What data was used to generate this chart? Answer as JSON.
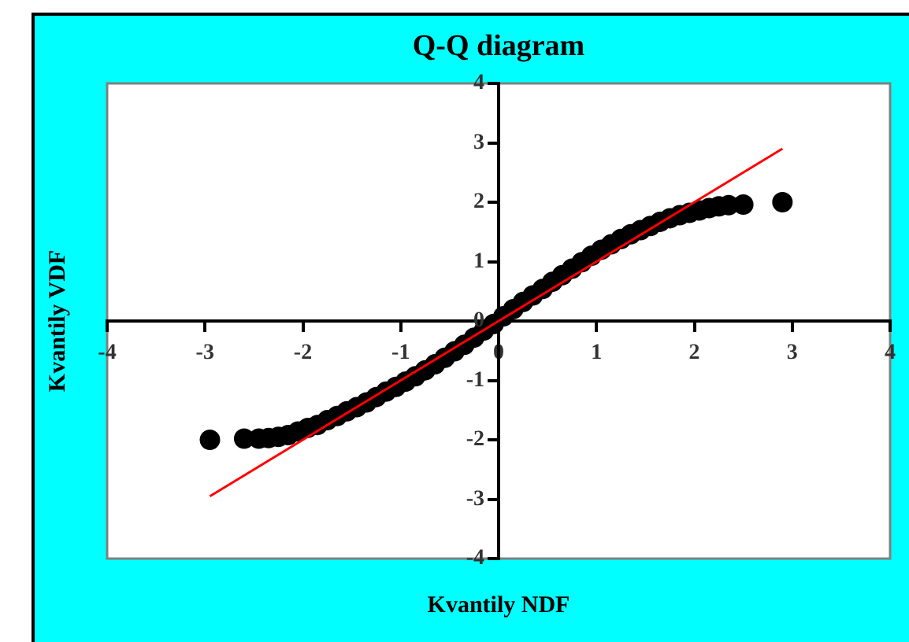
{
  "chart_data": {
    "type": "scatter",
    "title": "Q-Q diagram",
    "xlabel": "Kvantily NDF",
    "ylabel": "Kvantily VDF",
    "xlim": [
      -4,
      4
    ],
    "ylim": [
      -4,
      4
    ],
    "xticks": [
      -4,
      -3,
      -2,
      -1,
      0,
      1,
      2,
      3,
      4
    ],
    "yticks": [
      -4,
      -3,
      -2,
      -1,
      0,
      1,
      2,
      3,
      4
    ],
    "grid": false,
    "legend": false,
    "series": [
      {
        "marker": "circle",
        "color": "#000000",
        "x": [
          -2.95,
          -2.6,
          -2.45,
          -2.35,
          -2.25,
          -2.15,
          -2.05,
          -1.95,
          -1.85,
          -1.75,
          -1.65,
          -1.55,
          -1.45,
          -1.35,
          -1.25,
          -1.15,
          -1.05,
          -0.95,
          -0.85,
          -0.75,
          -0.65,
          -0.55,
          -0.45,
          -0.35,
          -0.25,
          -0.15,
          -0.05,
          0.05,
          0.15,
          0.25,
          0.35,
          0.45,
          0.55,
          0.65,
          0.75,
          0.85,
          0.95,
          1.05,
          1.15,
          1.25,
          1.35,
          1.45,
          1.55,
          1.65,
          1.75,
          1.85,
          1.95,
          2.05,
          2.15,
          2.25,
          2.35,
          2.5,
          2.9
        ],
        "values": [
          -2.0,
          -1.98,
          -1.98,
          -1.97,
          -1.95,
          -1.92,
          -1.86,
          -1.8,
          -1.75,
          -1.67,
          -1.6,
          -1.52,
          -1.45,
          -1.37,
          -1.28,
          -1.19,
          -1.11,
          -1.02,
          -0.93,
          -0.83,
          -0.73,
          -0.62,
          -0.51,
          -0.4,
          -0.28,
          -0.16,
          -0.05,
          0.08,
          0.2,
          0.32,
          0.43,
          0.54,
          0.66,
          0.77,
          0.88,
          0.99,
          1.1,
          1.2,
          1.29,
          1.38,
          1.46,
          1.53,
          1.6,
          1.67,
          1.73,
          1.78,
          1.82,
          1.86,
          1.9,
          1.93,
          1.95,
          1.96,
          2.0
        ]
      },
      {
        "type": "line",
        "color": "#ff0000",
        "x": [
          -2.95,
          2.9
        ],
        "values": [
          -2.95,
          2.9
        ],
        "line_style": "solid"
      }
    ]
  }
}
